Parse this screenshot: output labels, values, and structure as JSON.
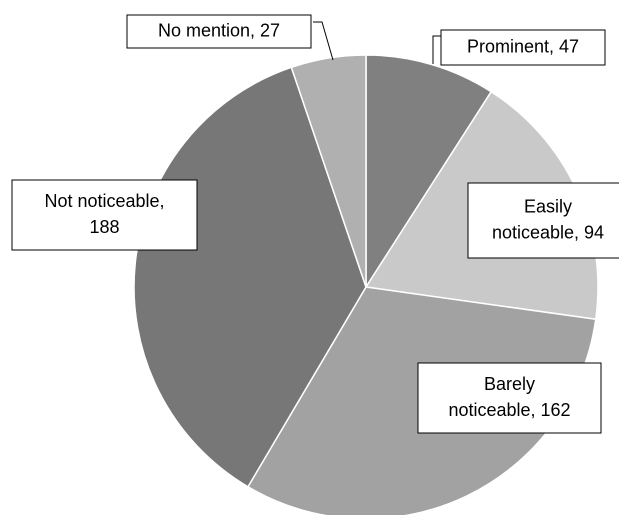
{
  "chart_data": {
    "type": "pie",
    "values": [
      47,
      94,
      162,
      188,
      27
    ],
    "value_labels": [
      [
        "Prominent, 47"
      ],
      [
        "Easily",
        "noticeable, 94"
      ],
      [
        "Barely",
        "noticeable, 162"
      ],
      [
        "Not noticeable,",
        "188"
      ],
      [
        "No mention, 27"
      ]
    ],
    "colors": [
      "#808080",
      "#c9c9c9",
      "#a2a2a2",
      "#777777",
      "#b0b0b0"
    ],
    "start_angle": 0,
    "direction": "clockwise"
  }
}
